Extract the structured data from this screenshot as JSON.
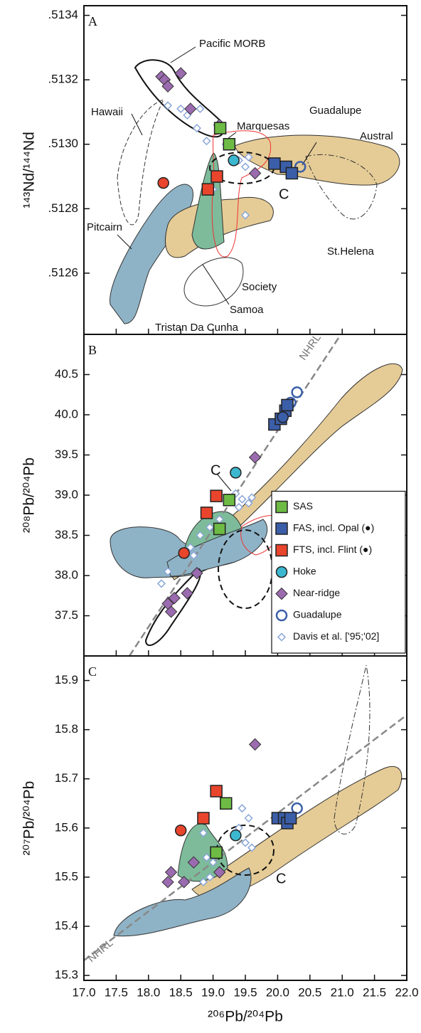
{
  "chart_data": [
    {
      "type": "scatter",
      "panel": "A",
      "ylabel": "¹⁴³Nd/¹⁴⁴Nd",
      "xlim": [
        17.0,
        22.0
      ],
      "ylim": [
        0.51241,
        0.51343
      ],
      "yticks": [
        {
          "value": 0.5126,
          "label": ".5126"
        },
        {
          "value": 0.5128,
          "label": ".5128"
        },
        {
          "value": 0.513,
          "label": ".5130"
        },
        {
          "value": 0.5132,
          "label": ".5132"
        },
        {
          "value": 0.5134,
          "label": ".5134"
        }
      ],
      "annotations": [
        "Pacific MORB",
        "Hawaii",
        "Marquesas",
        "Guadalupe",
        "Austral",
        "C",
        "St.Helena",
        "Pitcairn",
        "Society",
        "Samoa",
        "Tristan Da Cunha"
      ],
      "series": [
        {
          "name": "SAS",
          "color": "#6dbb45",
          "marker": "square",
          "x": [
            19.11,
            19.25
          ],
          "y": [
            0.51305,
            0.513
          ]
        },
        {
          "name": "FAS, incl. Opal (●)",
          "color": "#3b5ea8",
          "marker": "square",
          "x": [
            19.95,
            20.13,
            20.22
          ],
          "y": [
            0.51294,
            0.51293,
            0.51291
          ]
        },
        {
          "name": "FTS, incl. Flint (●)",
          "color": "#e8452c",
          "marker": "square",
          "markers": [
            "square",
            "square",
            "circle"
          ],
          "x": [
            19.06,
            18.92,
            18.23
          ],
          "y": [
            0.5129,
            0.51286,
            0.51288
          ]
        },
        {
          "name": "Hoke",
          "color": "#3bb8d0",
          "marker": "circle",
          "x": [
            19.32
          ],
          "y": [
            0.51295
          ]
        },
        {
          "name": "Near-ridge",
          "color": "#9b6bb0",
          "marker": "diamond",
          "x": [
            18.2,
            18.25,
            18.3,
            18.5,
            18.65,
            19.1,
            19.65
          ],
          "y": [
            0.51321,
            0.5132,
            0.51318,
            0.51322,
            0.51311,
            0.51306,
            0.51291
          ]
        },
        {
          "name": "Guadalupe",
          "color": "#3b5ea8",
          "marker": "open-circle",
          "x": [
            20.35
          ],
          "y": [
            0.51293
          ]
        },
        {
          "name": "Davis et al. ['95;'02]",
          "color": "#8aa6d8",
          "marker": "small-diamond",
          "x": [
            18.3,
            18.5,
            18.6,
            18.75,
            18.9,
            19.4,
            19.5,
            19.55,
            19.0,
            19.5,
            18.8,
            19.2
          ],
          "y": [
            0.51312,
            0.51311,
            0.51309,
            0.51305,
            0.51301,
            0.51295,
            0.51293,
            0.51296,
            0.51286,
            0.51278,
            0.51311,
            0.513
          ]
        }
      ]
    },
    {
      "type": "scatter",
      "panel": "B",
      "ylabel": "²⁰⁸Pb/²⁰⁴Pb",
      "xlim": [
        17.0,
        22.0
      ],
      "ylim": [
        37.0,
        41.0
      ],
      "yticks": [
        37.5,
        {
          "value": 38.0,
          "label": "38.0"
        },
        38.5,
        {
          "value": 39.0,
          "label": "39.0"
        },
        39.5,
        {
          "value": 40.0,
          "label": "40.0"
        },
        40.5
      ],
      "annotations": [
        "NHRL",
        "C"
      ],
      "legend": "lower right",
      "series": [
        {
          "name": "SAS",
          "color": "#6dbb45",
          "marker": "square",
          "x": [
            19.1,
            19.25
          ],
          "y": [
            38.58,
            38.94
          ]
        },
        {
          "name": "FAS, incl. Opal (●)",
          "color": "#3b5ea8",
          "marker": "square",
          "markers": [
            "square",
            "square",
            "square",
            "square",
            "circle"
          ],
          "x": [
            19.95,
            20.05,
            20.12,
            20.15,
            20.08
          ],
          "y": [
            39.88,
            39.95,
            40.05,
            40.12,
            39.97
          ]
        },
        {
          "name": "FTS, incl. Flint (●)",
          "color": "#e8452c",
          "marker": "square",
          "markers": [
            "square",
            "square",
            "circle"
          ],
          "x": [
            18.9,
            19.05,
            18.55
          ],
          "y": [
            38.78,
            38.99,
            38.28
          ]
        },
        {
          "name": "Hoke",
          "color": "#3bb8d0",
          "marker": "circle",
          "x": [
            19.35
          ],
          "y": [
            39.28
          ]
        },
        {
          "name": "Near-ridge",
          "color": "#9b6bb0",
          "marker": "diamond",
          "x": [
            19.65,
            18.75,
            18.6,
            18.35,
            18.3,
            18.4
          ],
          "y": [
            39.47,
            38.03,
            37.78,
            37.55,
            37.65,
            37.72
          ]
        },
        {
          "name": "Guadalupe",
          "color": "#3b5ea8",
          "marker": "open-circle",
          "x": [
            20.12,
            20.2,
            20.3
          ],
          "y": [
            40.05,
            40.15,
            40.28
          ]
        },
        {
          "name": "Davis et al. ['95;'02]",
          "color": "#8aa6d8",
          "marker": "small-diamond",
          "x": [
            18.2,
            18.3,
            18.6,
            18.65,
            18.7,
            18.8,
            18.95,
            19.1,
            19.4,
            19.55,
            19.45,
            19.6,
            19.35
          ],
          "y": [
            37.9,
            38.05,
            38.3,
            38.35,
            38.25,
            38.5,
            38.6,
            38.7,
            38.85,
            38.9,
            38.95,
            38.97,
            39.02
          ]
        }
      ]
    },
    {
      "type": "scatter",
      "panel": "C",
      "ylabel": "²⁰⁷Pb/²⁰⁴Pb",
      "xlabel": "²⁰⁶Pb/²⁰⁴Pb",
      "xlim": [
        17.0,
        22.0
      ],
      "ylim": [
        15.29,
        15.95
      ],
      "xticks": [
        {
          "value": 17.0,
          "label": "17.0"
        },
        17.5,
        {
          "value": 18.0,
          "label": "18.0"
        },
        18.5,
        {
          "value": 19.0,
          "label": "19.0"
        },
        19.5,
        {
          "value": 20.0,
          "label": "20.0"
        },
        20.5,
        {
          "value": 21.0,
          "label": "21.0"
        },
        21.5,
        {
          "value": 22.0,
          "label": "22.0"
        }
      ],
      "yticks": [
        15.3,
        15.4,
        15.5,
        15.6,
        15.7,
        15.8,
        15.9
      ],
      "annotations": [
        "C",
        "NHRL"
      ],
      "series": [
        {
          "name": "SAS",
          "color": "#6dbb45",
          "marker": "square",
          "x": [
            19.2,
            19.05
          ],
          "y": [
            15.65,
            15.55
          ]
        },
        {
          "name": "FAS, incl. Opal (●)",
          "color": "#3b5ea8",
          "marker": "square",
          "x": [
            20.0,
            20.1,
            20.15,
            20.2
          ],
          "y": [
            15.62,
            15.62,
            15.61,
            15.62
          ]
        },
        {
          "name": "FTS, incl. Flint (●)",
          "color": "#e8452c",
          "marker": "square",
          "markers": [
            "square",
            "square",
            "circle"
          ],
          "x": [
            19.05,
            18.85,
            18.5
          ],
          "y": [
            15.675,
            15.62,
            15.595
          ]
        },
        {
          "name": "Hoke",
          "color": "#3bb8d0",
          "marker": "circle",
          "x": [
            19.35
          ],
          "y": [
            15.585
          ]
        },
        {
          "name": "Near-ridge",
          "color": "#9b6bb0",
          "marker": "diamond",
          "x": [
            19.65,
            18.3,
            18.35,
            18.55,
            18.7,
            19.1
          ],
          "y": [
            15.77,
            15.49,
            15.51,
            15.49,
            15.53,
            15.51
          ]
        },
        {
          "name": "Guadalupe",
          "color": "#3b5ea8",
          "marker": "open-circle",
          "x": [
            20.3,
            20.15
          ],
          "y": [
            15.64,
            15.615
          ]
        },
        {
          "name": "Davis et al. ['95;'02]",
          "color": "#8aa6d8",
          "marker": "small-diamond",
          "x": [
            18.85,
            18.95,
            19.0,
            18.85,
            19.4,
            19.5,
            19.6,
            19.55,
            19.45,
            18.9
          ],
          "y": [
            15.49,
            15.5,
            15.53,
            15.59,
            15.6,
            15.57,
            15.56,
            15.62,
            15.64,
            15.54
          ]
        }
      ]
    }
  ]
}
